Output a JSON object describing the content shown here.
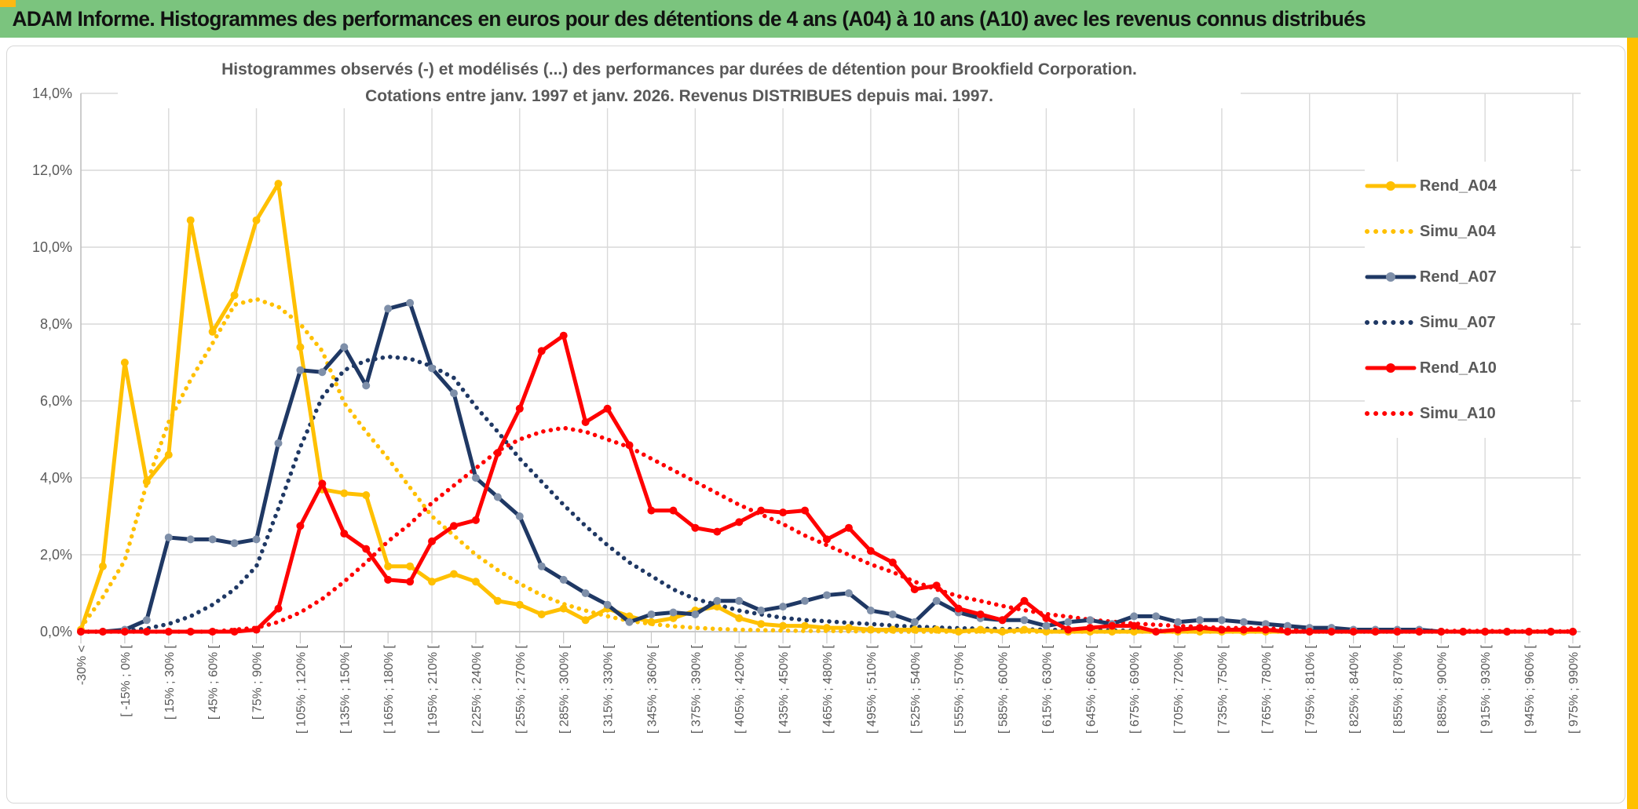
{
  "banner": {
    "title": "ADAM Informe. Histogrammes des performances en euros pour des détentions de 4 ans (A04) à 10 ans (A10) avec les revenus connus distribués"
  },
  "colors": {
    "banner_green": "#7bc47e",
    "accent_gold": "#ffc000",
    "grid_gray": "#d9d9d9",
    "axis_gray": "#bfbfbf",
    "text_gray": "#595959"
  },
  "chart_data": {
    "type": "line",
    "title_line1": "Histogrammes observés (-) et modélisés (...) des performances par durées de détention pour Brookfield Corporation.",
    "title_line2": "Cotations entre janv. 1997 et janv. 2026. Revenus DISTRIBUES depuis mai. 1997.",
    "ylabel": "",
    "xlabel": "",
    "ylim": [
      0,
      14
    ],
    "grid": true,
    "legend_position": "right",
    "y_tick_labels": [
      "0,0%",
      "2,0%",
      "4,0%",
      "6,0%",
      "8,0%",
      "10,0%",
      "12,0%",
      "14,0%"
    ],
    "categories": [
      "-30% <",
      "",
      "[ -15% ; 0% [",
      "",
      "[ 15% ; 30% [",
      "",
      "[ 45% ; 60% [",
      "",
      "[ 75% ; 90% [",
      "",
      "[ 105% ; 120% [",
      "",
      "[ 135% ; 150% [",
      "",
      "[ 165% ; 180% [",
      "",
      "[ 195% ; 210% [",
      "",
      "[ 225% ; 240% [",
      "",
      "[ 255% ; 270% [",
      "",
      "[ 285% ; 300% [",
      "",
      "[ 315% ; 330% [",
      "",
      "[ 345% ; 360% [",
      "",
      "[ 375% ; 390% [",
      "",
      "[ 405% ; 420% [",
      "",
      "[ 435% ; 450% [",
      "",
      "[ 465% ; 480% [",
      "",
      "[ 495% ; 510% [",
      "",
      "[ 525% ; 540% [",
      "",
      "[ 555% ; 570% [",
      "",
      "[ 585% ; 600% [",
      "",
      "[ 615% ; 630% [",
      "",
      "[ 645% ; 660% [",
      "",
      "[ 675% ; 690% [",
      "",
      "[ 705% ; 720% [",
      "",
      "[ 735% ; 750% [",
      "",
      "[ 765% ; 780% [",
      "",
      "[ 795% ; 810% [",
      "",
      "[ 825% ; 840% [",
      "",
      "[ 855% ; 870% [",
      "",
      "[ 885% ; 900% [",
      "",
      "[ 915% ; 930% [",
      "",
      "[ 945% ; 960% [",
      "",
      "[ 975% ; 990% ["
    ],
    "series": [
      {
        "name": "Rend_A04",
        "style": "solid",
        "color": "#ffc000",
        "marker": "#ffc000",
        "values": [
          0.05,
          1.7,
          7.0,
          3.9,
          4.6,
          10.7,
          7.8,
          8.75,
          10.7,
          11.65,
          7.4,
          3.7,
          3.6,
          3.55,
          1.7,
          1.7,
          1.3,
          1.5,
          1.3,
          0.8,
          0.7,
          0.45,
          0.6,
          0.3,
          0.6,
          0.4,
          0.25,
          0.35,
          0.55,
          0.65,
          0.35,
          0.2,
          0.15,
          0.15,
          0.1,
          0.1,
          0.05,
          0.05,
          0.05,
          0.05,
          0,
          0.05,
          0,
          0.05,
          0,
          0,
          0,
          0,
          0,
          0,
          0,
          0,
          0,
          0,
          0,
          0,
          0,
          0,
          0,
          0,
          0,
          0,
          0,
          0,
          0,
          0,
          0,
          0,
          0
        ]
      },
      {
        "name": "Simu_A04",
        "style": "dotted",
        "color": "#ffc000",
        "values": [
          0.1,
          0.9,
          1.85,
          3.85,
          5.45,
          6.55,
          7.5,
          8.5,
          8.65,
          8.45,
          8.0,
          7.3,
          5.95,
          5.2,
          4.5,
          3.75,
          3.0,
          2.5,
          2.0,
          1.6,
          1.25,
          0.95,
          0.72,
          0.55,
          0.4,
          0.28,
          0.2,
          0.14,
          0.1,
          0.07,
          0.05,
          0.04,
          0.03,
          0.02,
          0.02,
          0.01,
          0.01,
          0,
          0,
          0,
          0,
          0,
          0,
          0,
          0,
          0,
          0,
          0,
          0,
          0,
          0,
          0,
          0,
          0,
          0,
          0,
          0,
          0,
          0,
          0,
          0,
          0,
          0,
          0,
          0,
          0,
          0,
          0,
          0
        ]
      },
      {
        "name": "Rend_A07",
        "style": "solid",
        "color": "#1f3864",
        "marker": "#7e8fa9",
        "values": [
          0,
          0,
          0.05,
          0.3,
          2.45,
          2.4,
          2.4,
          2.3,
          2.4,
          4.9,
          6.8,
          6.75,
          7.4,
          6.4,
          8.4,
          8.55,
          6.85,
          6.2,
          4.0,
          3.5,
          3.0,
          1.7,
          1.35,
          1.0,
          0.7,
          0.25,
          0.45,
          0.5,
          0.45,
          0.8,
          0.8,
          0.55,
          0.65,
          0.8,
          0.95,
          1.0,
          0.55,
          0.45,
          0.25,
          0.8,
          0.5,
          0.35,
          0.3,
          0.3,
          0.15,
          0.25,
          0.3,
          0.2,
          0.4,
          0.4,
          0.25,
          0.3,
          0.3,
          0.25,
          0.2,
          0.15,
          0.1,
          0.1,
          0.05,
          0.05,
          0.05,
          0.05,
          0,
          0,
          0,
          0,
          0,
          0,
          0
        ]
      },
      {
        "name": "Simu_A07",
        "style": "dotted",
        "color": "#1f3864",
        "values": [
          0,
          0,
          0.02,
          0.08,
          0.2,
          0.4,
          0.7,
          1.1,
          1.7,
          3.2,
          4.8,
          6.1,
          6.8,
          7.05,
          7.15,
          7.1,
          6.9,
          6.6,
          5.85,
          5.2,
          4.5,
          3.9,
          3.3,
          2.75,
          2.25,
          1.8,
          1.45,
          1.1,
          0.85,
          0.7,
          0.55,
          0.45,
          0.36,
          0.3,
          0.27,
          0.23,
          0.2,
          0.16,
          0.13,
          0.11,
          0.09,
          0.08,
          0.07,
          0.06,
          0.05,
          0.04,
          0.04,
          0.03,
          0.03,
          0.02,
          0.02,
          0.02,
          0.01,
          0.01,
          0.01,
          0,
          0,
          0,
          0,
          0,
          0,
          0,
          0,
          0,
          0,
          0,
          0,
          0,
          0
        ]
      },
      {
        "name": "Rend_A10",
        "style": "solid",
        "color": "#ff0000",
        "marker": "#ff0000",
        "values": [
          0,
          0,
          0,
          0,
          0,
          0,
          0,
          0,
          0.05,
          0.6,
          2.75,
          3.85,
          2.55,
          2.15,
          1.35,
          1.3,
          2.35,
          2.75,
          2.9,
          4.65,
          5.8,
          7.3,
          7.7,
          5.45,
          5.8,
          4.85,
          3.15,
          3.15,
          2.7,
          2.6,
          2.85,
          3.15,
          3.1,
          3.15,
          2.4,
          2.7,
          2.1,
          1.8,
          1.1,
          1.2,
          0.6,
          0.45,
          0.3,
          0.8,
          0.35,
          0.05,
          0.1,
          0.15,
          0.15,
          0,
          0.05,
          0.1,
          0.05,
          0.05,
          0.05,
          0,
          0,
          0,
          0,
          0,
          0,
          0,
          0,
          0,
          0,
          0,
          0,
          0,
          0
        ]
      },
      {
        "name": "Simu_A10",
        "style": "dotted",
        "color": "#ff0000",
        "values": [
          0,
          0,
          0,
          0,
          0,
          0,
          0,
          0.05,
          0.1,
          0.25,
          0.5,
          0.85,
          1.3,
          1.8,
          2.35,
          2.8,
          3.35,
          3.8,
          4.25,
          4.7,
          5.0,
          5.2,
          5.3,
          5.2,
          5.0,
          4.8,
          4.5,
          4.2,
          3.9,
          3.6,
          3.3,
          3.05,
          2.8,
          2.5,
          2.25,
          2.0,
          1.75,
          1.55,
          1.3,
          1.1,
          0.92,
          0.8,
          0.67,
          0.56,
          0.46,
          0.39,
          0.31,
          0.26,
          0.21,
          0.18,
          0.15,
          0.12,
          0.1,
          0.09,
          0.08,
          0.07,
          0.06,
          0.05,
          0.04,
          0.04,
          0.03,
          0.03,
          0.02,
          0.02,
          0.02,
          0.01,
          0.01,
          0.01,
          0.01
        ]
      }
    ]
  }
}
